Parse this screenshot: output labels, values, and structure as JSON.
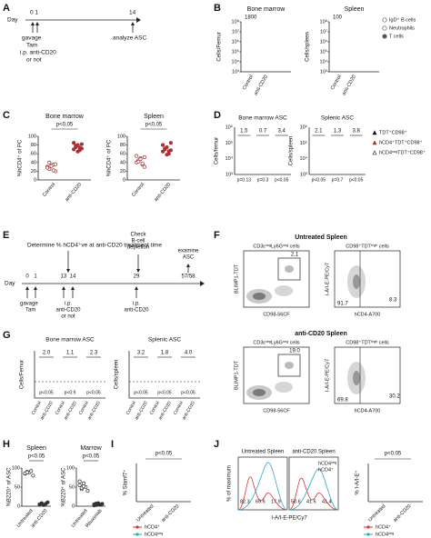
{
  "A": {
    "letter": "A",
    "day": "Day",
    "d0": "0 1",
    "d14": "14",
    "gavage": "gavage",
    "tam": "Tam",
    "ip": "i.p. anti-CD20",
    "or_not": "or not",
    "analyze": "analyze ASC"
  },
  "B": {
    "letter": "B",
    "panels": [
      {
        "title": "Bone marrow",
        "y_label": "Cells/Femur",
        "ticks": [
          "10⁸",
          "10⁷",
          "10⁶",
          "10⁵",
          "10⁴",
          "10³"
        ],
        "note": "1800",
        "x": [
          "Control",
          "anti-CD20"
        ]
      },
      {
        "title": "Spleen",
        "y_label": "Cells/spleen",
        "ticks": [
          "10⁸",
          "10⁷",
          "10⁶",
          "10⁵",
          "10⁴",
          "10³"
        ],
        "note": "100",
        "x": [
          "Control",
          "anti-CD20"
        ]
      }
    ],
    "legend": [
      "IgD⁺ B cells",
      "Neutrophils",
      "T cells"
    ]
  },
  "C": {
    "letter": "C",
    "y_label": "%hCD4⁺ of PC",
    "ylim": [
      0,
      100
    ],
    "yticks": [
      0,
      20,
      40,
      60,
      80,
      100
    ],
    "color": "#a83232",
    "plots": [
      {
        "title": "Bone marrow",
        "p": "p<0.05",
        "categories": [
          "Control",
          "anti-CD20"
        ],
        "groups": [
          [
            30,
            25,
            33,
            35,
            20,
            28,
            40,
            32,
            22,
            36
          ],
          [
            70,
            75,
            80,
            68,
            72,
            85,
            78,
            65,
            74,
            82
          ]
        ]
      },
      {
        "title": "Spleen",
        "p": "p<0.05",
        "categories": [
          "Control",
          "anti-CD20"
        ],
        "groups": [
          [
            40,
            45,
            50,
            35,
            30,
            55,
            42,
            48,
            38,
            52
          ],
          [
            65,
            70,
            75,
            60,
            68,
            80,
            72,
            58,
            66,
            85
          ]
        ]
      }
    ]
  },
  "D": {
    "letter": "D",
    "panels": [
      {
        "title": "Bone marrow ASC",
        "y_label": "Cells/femur",
        "ticks": [
          "10⁶",
          "10⁵",
          "10⁴",
          "10³"
        ],
        "ratios": [
          "1.5",
          "0.7",
          "3.4"
        ],
        "p": [
          "p=0.13",
          "p=0.3",
          "p<0.05"
        ]
      },
      {
        "title": "Splenic ASC",
        "y_label": "Cells/spleen",
        "ticks": [
          "10⁶",
          "10⁵",
          "10⁴",
          "10³"
        ],
        "ratios": [
          "2.1",
          "1.3",
          "3.8"
        ],
        "p": [
          "p<0.05",
          "p=0.7",
          "p<0.05"
        ]
      }
    ],
    "legend": [
      "TDT⁺CD98⁺",
      "hCD4⁺TDT⁺CD98⁺",
      "hCD4ⁿᵉᵍTDT⁺CD98⁺"
    ]
  },
  "E": {
    "letter": "E",
    "day": "Day",
    "days": [
      "0",
      "1",
      "13",
      "14",
      "29",
      "57/58"
    ],
    "determine": "Determine % hCD4⁺ve at anti-CD20 treatment time",
    "check": [
      "Check",
      "B-cell",
      "depletion"
    ],
    "examine": [
      "examine",
      "ASC"
    ],
    "gavage": "gavage",
    "tam": "Tam",
    "ip1": "i.p.",
    "ip1b": "anti-CD20",
    "or_not": "or not",
    "ip2": [
      "i.p.",
      "anti-CD20"
    ]
  },
  "F": {
    "letter": "F",
    "rows": [
      {
        "title": "Untreated Spleen",
        "gate1": "CD3εⁿᵉᵍLy6Gⁿᵉᵍ cells",
        "gate2": "CD98⁺TDTʰⁱᵍʰ cells",
        "y1": "BLIMP1-TDT",
        "x1": "CD98-56CF",
        "y2": "I-A/I-E-PE/Cy7",
        "x2": "hCD4-A700",
        "box": "2.1",
        "left": "91.7",
        "right": "8.3"
      },
      {
        "title": "anti-CD20 Spleen",
        "gate1": "CD3εⁿᵉᵍLy6Gⁿᵉᵍ cells",
        "gate2": "CD98⁺TDTʰⁱᵍʰ cells",
        "y1": "BLIMP1-TDT",
        "x1": "CD98-56CF",
        "y2": "I-A/I-E-PE/Cy7",
        "x2": "hCD4-A700",
        "box": "19.0",
        "left": "69.8",
        "right": "30.2"
      }
    ]
  },
  "G": {
    "letter": "G",
    "panels": [
      {
        "title": "Bone marrow ASC",
        "y_label": "Cells/Femur",
        "ratios": [
          "2.0",
          "1.1",
          "2.3"
        ],
        "p": [
          "p<0.05",
          "p<0.9",
          "p<0.05"
        ],
        "x": [
          "Control",
          "anti-CD20",
          "Control",
          "anti-CD20",
          "Control",
          "anti-CD20"
        ]
      },
      {
        "title": "Splenic ASC",
        "y_label": "Cells/spleen",
        "ratios": [
          "3.2",
          "1.8",
          "4.0"
        ],
        "p": [
          "p<0.05",
          "p<0.05",
          "p<0.05"
        ],
        "x": [
          "Control",
          "anti-CD20",
          "Control",
          "anti-CD20",
          "Control",
          "anti-CD20"
        ]
      }
    ]
  },
  "H": {
    "letter": "H",
    "y_label": "%B220⁺ of ASC",
    "ylim": [
      0,
      100
    ],
    "yticks": [
      0,
      50,
      100
    ],
    "color": "#333333",
    "plots": [
      {
        "title": "Spleen",
        "p": "p<0.05",
        "categories": [
          "Untreated",
          "anti-CD20"
        ],
        "groups": [
          [
            85,
            90,
            88,
            92,
            80,
            86,
            89
          ],
          [
            5,
            8,
            3,
            6,
            10,
            4,
            7
          ]
        ]
      },
      {
        "title": "Marrow",
        "p": "p<0.05",
        "categories": [
          "Untreated",
          "Rituximab"
        ],
        "groups": [
          [
            55,
            45,
            60,
            50,
            40,
            65,
            48,
            52
          ],
          [
            5,
            3,
            8,
            4,
            6,
            2,
            7,
            5
          ]
        ]
      }
    ]
  },
  "I": {
    "letter": "I",
    "p": "p<0.05",
    "y_label": "% Slamf7⁺",
    "legend": [
      "hCD4⁺",
      "hCD4ⁿᵉᵍ"
    ],
    "x": [
      "Untreated",
      "anti-CD20"
    ]
  },
  "J": {
    "letter": "J",
    "titles": [
      "Untreated Spleen",
      "anti-CD20 Spleen"
    ],
    "y_label": "% of maximum",
    "x_label": "I-A/I-E-PE/Cy7",
    "legend": [
      "hCD4ⁿᵉᵍ",
      "hCD4⁺"
    ],
    "left_values": [
      "82.3",
      "69.6",
      "17.9"
    ],
    "right_values": [
      "58.6",
      "41.6",
      "41.4"
    ],
    "p": "p<0.05",
    "y2_label": "% I-A/I-E⁺",
    "legend2": [
      "hCD4⁺",
      "hCD4ⁿᵉᵍ"
    ],
    "x2": [
      "Untreated",
      "anti-CD20"
    ]
  }
}
